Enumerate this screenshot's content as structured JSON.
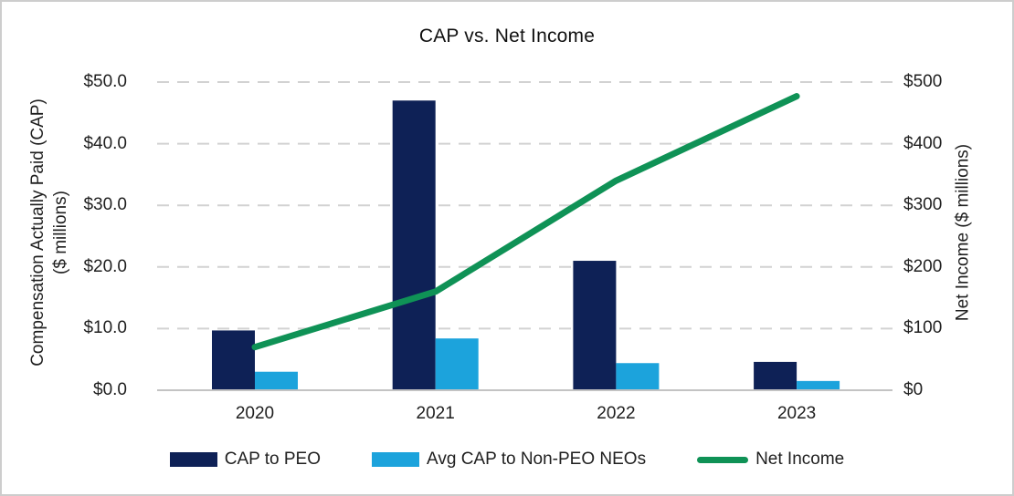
{
  "title": "CAP vs. Net Income",
  "left_axis": {
    "title_line1": "Compensation Actually Paid (CAP)",
    "title_line2": "($ millions)",
    "tick_labels": [
      "$0.0",
      "$10.0",
      "$20.0",
      "$30.0",
      "$40.0",
      "$50.0"
    ],
    "min": 0,
    "max": 50,
    "step": 10
  },
  "right_axis": {
    "title": "Net Income ($ millions)",
    "tick_labels": [
      "$0",
      "$100",
      "$200",
      "$300",
      "$400",
      "$500"
    ],
    "min": 0,
    "max": 500,
    "step": 100
  },
  "x_axis": {
    "categories": [
      "2020",
      "2021",
      "2022",
      "2023"
    ]
  },
  "legend": [
    {
      "label": "CAP to PEO",
      "swatch": "bar",
      "color": "#0E2156"
    },
    {
      "label": "Avg CAP to Non-PEO NEOs",
      "swatch": "bar",
      "color": "#1CA3DC"
    },
    {
      "label": "Net Income",
      "swatch": "line",
      "color": "#0F9256"
    }
  ],
  "colors": {
    "cap_to_peo": "#0E2156",
    "avg_cap_non_peo": "#1CA3DC",
    "net_income": "#0F9256",
    "gridline": "#D2D2D2",
    "axis_line": "#C3C3C3",
    "text": "#1F1F1F",
    "frame_border": "#CDCDCD"
  },
  "chart_data": {
    "type": "combo-bar-line",
    "title": "CAP vs. Net Income",
    "categories": [
      "2020",
      "2021",
      "2022",
      "2023"
    ],
    "series": [
      {
        "name": "CAP to PEO",
        "type": "bar",
        "axis": "left",
        "color": "#0E2156",
        "values": [
          9.7,
          47.0,
          21.0,
          4.6
        ]
      },
      {
        "name": "Avg CAP to Non-PEO NEOs",
        "type": "bar",
        "axis": "left",
        "color": "#1CA3DC",
        "values": [
          3.0,
          8.4,
          4.4,
          1.5
        ]
      },
      {
        "name": "Net Income",
        "type": "line",
        "axis": "right",
        "color": "#0F9256",
        "values": [
          70,
          160,
          340,
          477
        ]
      }
    ],
    "ylabel_left": "Compensation Actually Paid (CAP) ($ millions)",
    "ylabel_right": "Net Income ($ millions)",
    "ylim_left": [
      0,
      50
    ],
    "ylim_right": [
      0,
      500
    ],
    "grid": "horizontal-dashed",
    "legend_position": "bottom"
  }
}
